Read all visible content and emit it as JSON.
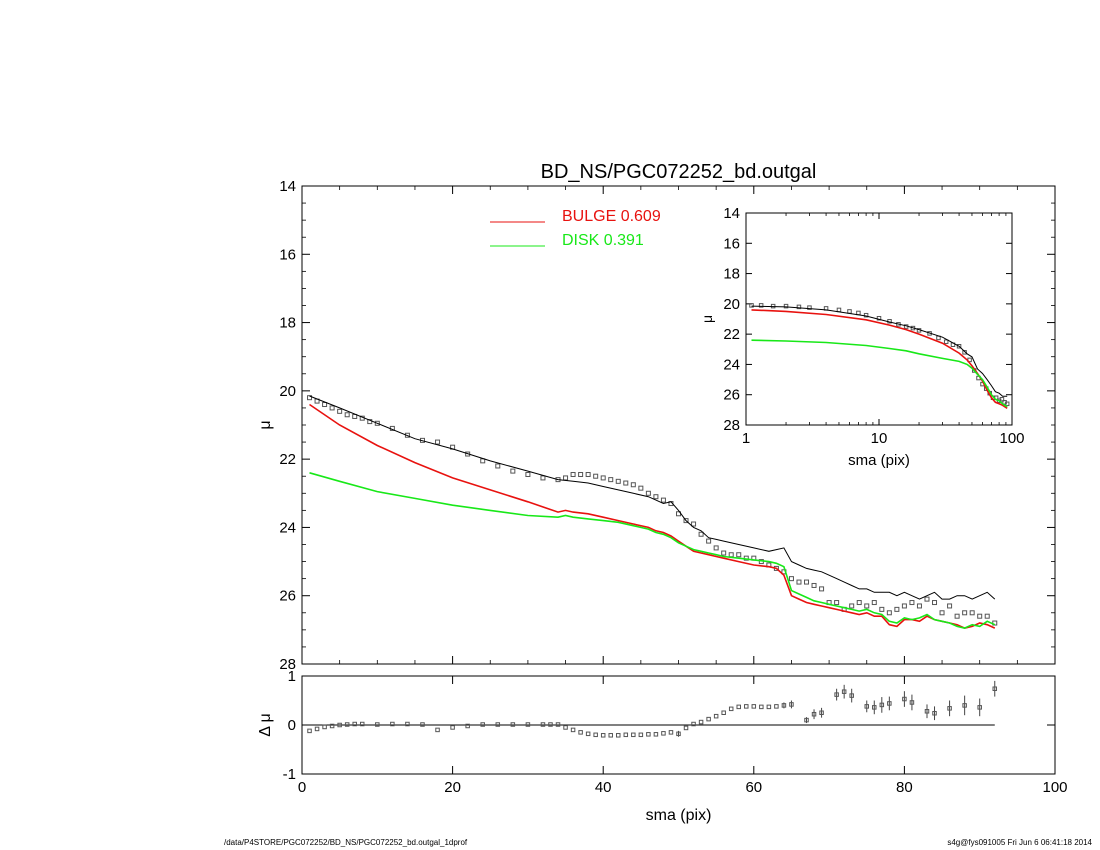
{
  "footer": {
    "left": "/data/P4STORE/PGC072252/BD_NS/PGC072252_bd.outgal_1dprof",
    "right": "s4g@fys091005  Fri Jun  6 06:41:18 2014"
  },
  "colors": {
    "bulge": "#e8120f",
    "disk": "#18e818",
    "total": "#000000",
    "points": "#555555"
  },
  "chart_data": [
    {
      "id": "main",
      "type": "scatter",
      "title": "BD_NS/PGC072252_bd.outgal",
      "xlabel": "",
      "ylabel": "μ",
      "xlim": [
        0,
        100
      ],
      "ylim": [
        14,
        28
      ],
      "y_inverted": true,
      "xticks": [
        0,
        20,
        40,
        60,
        80,
        100
      ],
      "xticklabels": [
        "",
        "",
        "",
        "",
        "",
        ""
      ],
      "yticks": [
        14,
        16,
        18,
        20,
        22,
        24,
        26,
        28
      ],
      "yticklabels": [
        "14",
        "16",
        "18",
        "20",
        "22",
        "24",
        "26",
        "28"
      ],
      "legend": [
        {
          "name": "BULGE",
          "value": "0.609",
          "color": "#e8120f"
        },
        {
          "name": "DISK",
          "value": "0.391",
          "color": "#18e818"
        }
      ],
      "legend_placement": "top-center",
      "series": [
        {
          "name": "data",
          "kind": "points",
          "x": [
            1,
            2,
            3,
            4,
            5,
            6,
            7,
            8,
            9,
            10,
            12,
            14,
            16,
            18,
            20,
            22,
            24,
            26,
            28,
            30,
            32,
            34,
            35,
            36,
            37,
            38,
            39,
            40,
            41,
            42,
            43,
            44,
            45,
            46,
            47,
            48,
            49,
            50,
            51,
            52,
            53,
            54,
            55,
            56,
            57,
            58,
            59,
            60,
            61,
            62,
            63,
            64,
            65,
            66,
            67,
            68,
            69,
            70,
            71,
            72,
            73,
            74,
            75,
            76,
            77,
            78,
            79,
            80,
            81,
            82,
            83,
            84,
            85,
            86,
            87,
            88,
            89,
            90,
            91,
            92
          ],
          "y": [
            20.2,
            20.3,
            20.4,
            20.5,
            20.6,
            20.7,
            20.75,
            20.8,
            20.9,
            20.95,
            21.1,
            21.3,
            21.45,
            21.5,
            21.65,
            21.85,
            22.05,
            22.2,
            22.35,
            22.45,
            22.55,
            22.6,
            22.55,
            22.45,
            22.45,
            22.45,
            22.5,
            22.55,
            22.6,
            22.65,
            22.7,
            22.75,
            22.85,
            23.0,
            23.1,
            23.2,
            23.3,
            23.6,
            23.8,
            23.9,
            24.2,
            24.4,
            24.6,
            24.75,
            24.8,
            24.8,
            24.9,
            24.9,
            25.0,
            25.1,
            25.2,
            25.3,
            25.5,
            25.6,
            25.6,
            25.7,
            25.8,
            26.2,
            26.2,
            26.4,
            26.3,
            26.2,
            26.3,
            26.2,
            26.4,
            26.5,
            26.4,
            26.3,
            26.2,
            26.3,
            26.1,
            26.2,
            26.5,
            26.3,
            26.6,
            26.5,
            26.5,
            26.6,
            26.6,
            26.8
          ]
        },
        {
          "name": "total",
          "kind": "line",
          "color": "#000000",
          "x": [
            1,
            5,
            10,
            15,
            20,
            25,
            30,
            34,
            36,
            38,
            40,
            42,
            44,
            46,
            47,
            48,
            49,
            50,
            51,
            52,
            53,
            54,
            55,
            56,
            58,
            60,
            62,
            63,
            64,
            65,
            66,
            67,
            68,
            69,
            70,
            71,
            72,
            73,
            74,
            75,
            76,
            77,
            78,
            79,
            80,
            81,
            82,
            83,
            84,
            85,
            86,
            87,
            88,
            89,
            90,
            91,
            92
          ],
          "y": [
            20.15,
            20.5,
            20.95,
            21.4,
            21.7,
            22.05,
            22.35,
            22.6,
            22.65,
            22.7,
            22.8,
            22.9,
            23.0,
            23.1,
            23.2,
            23.3,
            23.25,
            23.5,
            23.8,
            24.0,
            24.1,
            24.3,
            24.35,
            24.4,
            24.5,
            24.6,
            24.7,
            24.65,
            24.6,
            25.0,
            25.1,
            25.2,
            25.25,
            25.3,
            25.4,
            25.5,
            25.6,
            25.7,
            25.8,
            25.8,
            25.9,
            25.9,
            25.9,
            26.0,
            25.9,
            26.0,
            26.1,
            26.0,
            25.9,
            26.1,
            26.1,
            26.0,
            26.0,
            26.1,
            26.0,
            25.9,
            26.1
          ]
        },
        {
          "name": "bulge",
          "kind": "line",
          "color": "#e8120f",
          "x": [
            1,
            5,
            10,
            15,
            20,
            25,
            30,
            34,
            35,
            36,
            38,
            40,
            42,
            44,
            46,
            47,
            48,
            49,
            50,
            51,
            52,
            53,
            54,
            55,
            56,
            58,
            60,
            62,
            63,
            64,
            65,
            66,
            67,
            68,
            69,
            70,
            71,
            72,
            73,
            74,
            75,
            76,
            77,
            78,
            79,
            80,
            81,
            82,
            83,
            84,
            85,
            86,
            87,
            88,
            89,
            90,
            91,
            92
          ],
          "y": [
            20.4,
            21.0,
            21.6,
            22.1,
            22.55,
            22.9,
            23.25,
            23.55,
            23.5,
            23.55,
            23.6,
            23.7,
            23.8,
            23.9,
            24.0,
            24.1,
            24.15,
            24.25,
            24.4,
            24.55,
            24.7,
            24.75,
            24.8,
            24.85,
            24.9,
            25.0,
            25.1,
            25.15,
            25.2,
            25.4,
            26.0,
            26.1,
            26.2,
            26.25,
            26.3,
            26.35,
            26.4,
            26.45,
            26.5,
            26.55,
            26.5,
            26.6,
            26.6,
            26.85,
            26.9,
            26.7,
            26.7,
            26.75,
            26.6,
            26.7,
            26.75,
            26.8,
            26.85,
            26.95,
            26.9,
            26.8,
            26.85,
            26.95
          ]
        },
        {
          "name": "disk",
          "kind": "line",
          "color": "#18e818",
          "x": [
            1,
            5,
            10,
            15,
            20,
            25,
            30,
            34,
            35,
            36,
            38,
            40,
            42,
            44,
            46,
            47,
            48,
            49,
            50,
            51,
            52,
            53,
            54,
            55,
            56,
            58,
            60,
            62,
            63,
            64,
            65,
            66,
            67,
            68,
            69,
            70,
            71,
            72,
            73,
            74,
            75,
            76,
            77,
            78,
            79,
            80,
            81,
            82,
            83,
            84,
            85,
            86,
            87,
            88,
            89,
            90,
            91,
            92
          ],
          "y": [
            22.4,
            22.65,
            22.95,
            23.15,
            23.35,
            23.5,
            23.65,
            23.7,
            23.65,
            23.7,
            23.75,
            23.8,
            23.85,
            23.95,
            24.05,
            24.15,
            24.2,
            24.3,
            24.45,
            24.55,
            24.65,
            24.7,
            24.75,
            24.8,
            24.85,
            24.9,
            24.95,
            25.0,
            25.05,
            25.15,
            25.85,
            25.95,
            26.05,
            26.15,
            26.2,
            26.25,
            26.3,
            26.35,
            26.4,
            26.45,
            26.4,
            26.5,
            26.55,
            26.75,
            26.8,
            26.65,
            26.7,
            26.65,
            26.55,
            26.7,
            26.75,
            26.8,
            26.9,
            26.95,
            26.85,
            26.9,
            26.75,
            26.85
          ]
        }
      ]
    },
    {
      "id": "residual",
      "type": "scatter",
      "xlabel": "sma (pix)",
      "ylabel": "Δ μ",
      "xlim": [
        0,
        100
      ],
      "ylim": [
        -1,
        1
      ],
      "xticks": [
        0,
        20,
        40,
        60,
        80,
        100
      ],
      "xticklabels": [
        "0",
        "20",
        "40",
        "60",
        "80",
        "100"
      ],
      "yticks": [
        -1,
        0,
        1
      ],
      "yticklabels": [
        "-1",
        "0",
        "1"
      ],
      "reference_line": {
        "y": 0,
        "x_from": 1,
        "x_to": 92
      },
      "series": [
        {
          "name": "residuals",
          "kind": "points_with_errorbars",
          "x": [
            1,
            2,
            3,
            4,
            5,
            6,
            7,
            8,
            10,
            12,
            14,
            16,
            18,
            20,
            22,
            24,
            26,
            28,
            30,
            32,
            33,
            34,
            35,
            36,
            37,
            38,
            39,
            40,
            41,
            42,
            43,
            44,
            45,
            46,
            47,
            48,
            49,
            50,
            51,
            52,
            53,
            54,
            55,
            56,
            57,
            58,
            59,
            60,
            61,
            62,
            63,
            64,
            65,
            67,
            68,
            69,
            71,
            72,
            73,
            75,
            76,
            77,
            78,
            80,
            81,
            83,
            84,
            86,
            88,
            90,
            92
          ],
          "y": [
            -0.12,
            -0.08,
            -0.04,
            -0.02,
            0,
            0.01,
            0.02,
            0.02,
            0.01,
            0.02,
            0.02,
            0.01,
            -0.1,
            -0.05,
            -0.02,
            0.01,
            0.01,
            0.01,
            0.01,
            0.01,
            0.01,
            0.01,
            -0.05,
            -0.1,
            -0.15,
            -0.18,
            -0.2,
            -0.21,
            -0.21,
            -0.21,
            -0.2,
            -0.2,
            -0.2,
            -0.19,
            -0.19,
            -0.17,
            -0.15,
            -0.18,
            -0.06,
            0.02,
            0.06,
            0.12,
            0.18,
            0.25,
            0.33,
            0.37,
            0.38,
            0.38,
            0.37,
            0.37,
            0.38,
            0.4,
            0.42,
            0.1,
            0.22,
            0.25,
            0.62,
            0.68,
            0.6,
            0.38,
            0.36,
            0.41,
            0.44,
            0.53,
            0.46,
            0.28,
            0.24,
            0.34,
            0.4,
            0.36,
            0.74
          ],
          "err": [
            0,
            0,
            0,
            0,
            0,
            0,
            0,
            0,
            0,
            0,
            0,
            0,
            0,
            0,
            0,
            0,
            0,
            0,
            0,
            0,
            0,
            0,
            0,
            0,
            0,
            0,
            0,
            0,
            0,
            0,
            0,
            0,
            0,
            0,
            0,
            0,
            0,
            0.06,
            0,
            0,
            0,
            0,
            0,
            0,
            0,
            0,
            0,
            0,
            0,
            0,
            0,
            0.06,
            0.08,
            0.06,
            0.1,
            0.1,
            0.12,
            0.14,
            0.14,
            0.12,
            0.14,
            0.16,
            0.14,
            0.16,
            0.16,
            0.14,
            0.14,
            0.16,
            0.2,
            0.18,
            0.16
          ]
        }
      ]
    },
    {
      "id": "inset",
      "type": "scatter",
      "xlabel": "sma (pix)",
      "ylabel": "μ",
      "xscale": "log",
      "xlim": [
        1,
        100
      ],
      "ylim": [
        14,
        28
      ],
      "y_inverted": true,
      "xticks": [
        1,
        10,
        100
      ],
      "xticklabels": [
        "1",
        "10",
        "100"
      ],
      "yticks": [
        14,
        16,
        18,
        20,
        22,
        24,
        26,
        28
      ],
      "yticklabels": [
        "14",
        "16",
        "18",
        "20",
        "22",
        "24",
        "26",
        "28"
      ],
      "series": [
        {
          "name": "data",
          "kind": "points",
          "x": [
            1.1,
            1.3,
            1.6,
            2,
            2.5,
            3,
            4,
            5,
            6,
            7,
            8,
            10,
            12,
            14,
            16,
            18,
            20,
            24,
            28,
            32,
            36,
            40,
            44,
            48,
            52,
            56,
            60,
            64,
            68,
            72,
            76,
            80,
            84,
            88,
            92
          ],
          "y": [
            20.1,
            20.1,
            20.15,
            20.15,
            20.2,
            20.25,
            20.3,
            20.4,
            20.5,
            20.6,
            20.75,
            20.95,
            21.15,
            21.35,
            21.5,
            21.6,
            21.75,
            21.95,
            22.25,
            22.5,
            22.7,
            22.8,
            23.2,
            23.7,
            24.4,
            24.9,
            25.3,
            25.6,
            25.9,
            26.2,
            26.2,
            26.4,
            26.3,
            26.5,
            26.6
          ]
        },
        {
          "name": "total",
          "kind": "line",
          "color": "#000000",
          "x": [
            1.1,
            2,
            4,
            8,
            12,
            16,
            20,
            30,
            40,
            46,
            50,
            55,
            60,
            65,
            70,
            75,
            80,
            85,
            92
          ],
          "y": [
            20.15,
            20.2,
            20.4,
            20.8,
            21.2,
            21.45,
            21.7,
            22.2,
            22.8,
            23.3,
            23.5,
            24.3,
            24.6,
            25.0,
            25.4,
            25.8,
            25.9,
            26.1,
            26.1
          ]
        },
        {
          "name": "bulge",
          "kind": "line",
          "color": "#e8120f",
          "x": [
            1.1,
            2,
            4,
            8,
            12,
            16,
            20,
            30,
            40,
            46,
            50,
            55,
            60,
            65,
            70,
            75,
            80,
            85,
            92
          ],
          "y": [
            20.4,
            20.5,
            20.7,
            21.05,
            21.4,
            21.7,
            22.0,
            22.6,
            23.25,
            23.7,
            24.1,
            24.6,
            25.1,
            25.7,
            26.2,
            26.5,
            26.6,
            26.7,
            26.9
          ]
        },
        {
          "name": "disk",
          "kind": "line",
          "color": "#18e818",
          "x": [
            1.1,
            2,
            4,
            8,
            12,
            16,
            20,
            30,
            40,
            46,
            50,
            55,
            60,
            65,
            70,
            75,
            80,
            85,
            92
          ],
          "y": [
            22.4,
            22.45,
            22.55,
            22.75,
            22.95,
            23.1,
            23.3,
            23.6,
            23.8,
            24.0,
            24.25,
            24.65,
            25.0,
            25.5,
            26.0,
            26.3,
            26.4,
            26.6,
            26.8
          ]
        }
      ]
    }
  ]
}
